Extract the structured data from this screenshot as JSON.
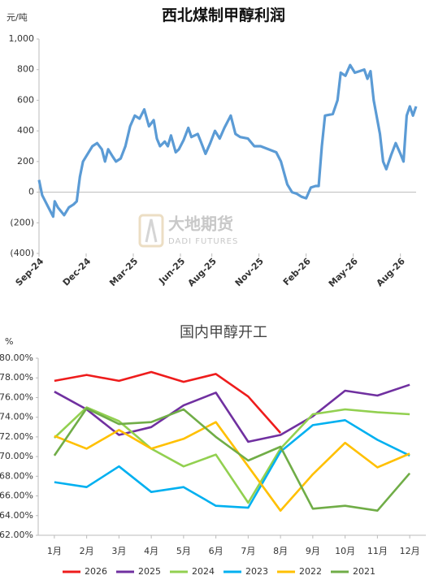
{
  "chart_data": [
    {
      "type": "line",
      "title": "西北煤制甲醇利润",
      "y_label": "元/吨",
      "watermark": "大地期货",
      "watermark_sub": "DADI FUTURES",
      "xlim": [
        0,
        24
      ],
      "xticks": [
        {
          "value": 0,
          "label": "Sep-24"
        },
        {
          "value": 3,
          "label": "Dec-24"
        },
        {
          "value": 6,
          "label": "Mar-25"
        },
        {
          "value": 9,
          "label": "Jun-25"
        },
        {
          "value": 11,
          "label": "Aug-25"
        },
        {
          "value": 14,
          "label": "Nov-25"
        },
        {
          "value": 17,
          "label": "Feb-26"
        },
        {
          "value": 20,
          "label": "May-26"
        },
        {
          "value": 23,
          "label": "Aug-26"
        }
      ],
      "ylim": [
        -400,
        1000
      ],
      "yticks": [
        {
          "value": 1000,
          "label": "1,000"
        },
        800,
        600,
        400,
        200,
        0,
        {
          "value": -200,
          "label": "(200)"
        },
        {
          "value": -400,
          "label": "(400)"
        }
      ],
      "grid": false,
      "x": [
        0,
        0.2,
        0.5,
        0.9,
        1.0,
        1.2,
        1.6,
        1.9,
        2.2,
        2.4,
        2.6,
        2.8,
        3.1,
        3.4,
        3.7,
        4.0,
        4.2,
        4.4,
        4.7,
        4.9,
        5.2,
        5.5,
        5.8,
        6.1,
        6.4,
        6.7,
        7.0,
        7.3,
        7.5,
        7.7,
        8.0,
        8.2,
        8.4,
        8.7,
        8.9,
        9.2,
        9.5,
        9.7,
        10.1,
        10.3,
        10.6,
        10.9,
        11.2,
        11.5,
        11.8,
        12.2,
        12.5,
        12.8,
        13.3,
        13.7,
        14.1,
        14.6,
        15.1,
        15.4,
        15.8,
        16.1,
        16.4,
        16.7,
        17.0,
        17.3,
        17.6,
        17.8,
        18.0,
        18.2,
        18.7,
        19.0,
        19.2,
        19.5,
        19.8,
        20.1,
        20.4,
        20.7,
        20.9,
        21.1,
        21.3,
        21.7,
        21.9,
        22.1,
        22.4,
        22.7,
        23.0,
        23.2,
        23.4,
        23.6,
        23.8,
        24.0
      ],
      "series": [
        {
          "color": "#5b9bd5",
          "values": [
            80,
            -20,
            -80,
            -160,
            -60,
            -100,
            -150,
            -100,
            -80,
            -60,
            100,
            200,
            250,
            300,
            320,
            280,
            200,
            280,
            230,
            200,
            220,
            300,
            430,
            500,
            480,
            540,
            430,
            470,
            350,
            300,
            330,
            300,
            370,
            260,
            280,
            340,
            420,
            360,
            380,
            330,
            250,
            320,
            400,
            350,
            420,
            500,
            380,
            360,
            350,
            300,
            300,
            280,
            260,
            200,
            50,
            0,
            -10,
            -30,
            -40,
            30,
            40,
            40,
            300,
            500,
            510,
            600,
            780,
            760,
            830,
            780,
            790,
            800,
            740,
            790,
            600,
            380,
            200,
            150,
            240,
            320,
            250,
            200,
            500,
            560,
            500,
            560
          ]
        }
      ]
    },
    {
      "type": "line",
      "title": "国内甲醇开工",
      "y_label": "%",
      "categories": [
        "1月",
        "2月",
        "3月",
        "4月",
        "5月",
        "6月",
        "7月",
        "8月",
        "9月",
        "10月",
        "11月",
        "12月"
      ],
      "ylim": [
        62,
        80
      ],
      "yticks": [
        {
          "value": 80,
          "label": "80.00%"
        },
        {
          "value": 78,
          "label": "78.00%"
        },
        {
          "value": 76,
          "label": "76.00%"
        },
        {
          "value": 74,
          "label": "74.00%"
        },
        {
          "value": 72,
          "label": "72.00%"
        },
        {
          "value": 70,
          "label": "70.00%"
        },
        {
          "value": 68,
          "label": "68.00%"
        },
        {
          "value": 66,
          "label": "66.00%"
        },
        {
          "value": 64,
          "label": "64.00%"
        },
        {
          "value": 62,
          "label": "62.00%"
        }
      ],
      "grid": false,
      "legend": "bottom",
      "series": [
        {
          "name": "2026",
          "color": "#ee1c1c",
          "values": [
            77.7,
            78.3,
            77.7,
            78.6,
            77.6,
            78.4,
            76.1,
            72.4,
            null,
            null,
            null,
            null
          ]
        },
        {
          "name": "2025",
          "color": "#7030a0",
          "values": [
            76.6,
            74.8,
            72.2,
            73.0,
            75.2,
            76.5,
            71.5,
            72.2,
            74.1,
            76.7,
            76.2,
            77.3
          ]
        },
        {
          "name": "2024",
          "color": "#92d050",
          "values": [
            71.9,
            75.0,
            73.6,
            70.8,
            69.0,
            70.2,
            65.3,
            70.8,
            74.3,
            74.8,
            74.5,
            74.3
          ]
        },
        {
          "name": "2023",
          "color": "#00b0f0",
          "values": [
            67.4,
            66.9,
            69.0,
            66.4,
            66.9,
            65.0,
            64.8,
            70.5,
            73.2,
            73.7,
            71.7,
            70.1
          ]
        },
        {
          "name": "2022",
          "color": "#ffc000",
          "values": [
            72.1,
            70.8,
            72.7,
            70.8,
            71.8,
            73.5,
            69.0,
            64.5,
            68.2,
            71.4,
            68.9,
            70.3
          ]
        },
        {
          "name": "2021",
          "color": "#70ad47",
          "values": [
            70.1,
            74.9,
            73.3,
            73.5,
            74.8,
            72.0,
            69.6,
            71.0,
            64.7,
            65.0,
            64.5,
            68.3
          ]
        }
      ]
    }
  ]
}
